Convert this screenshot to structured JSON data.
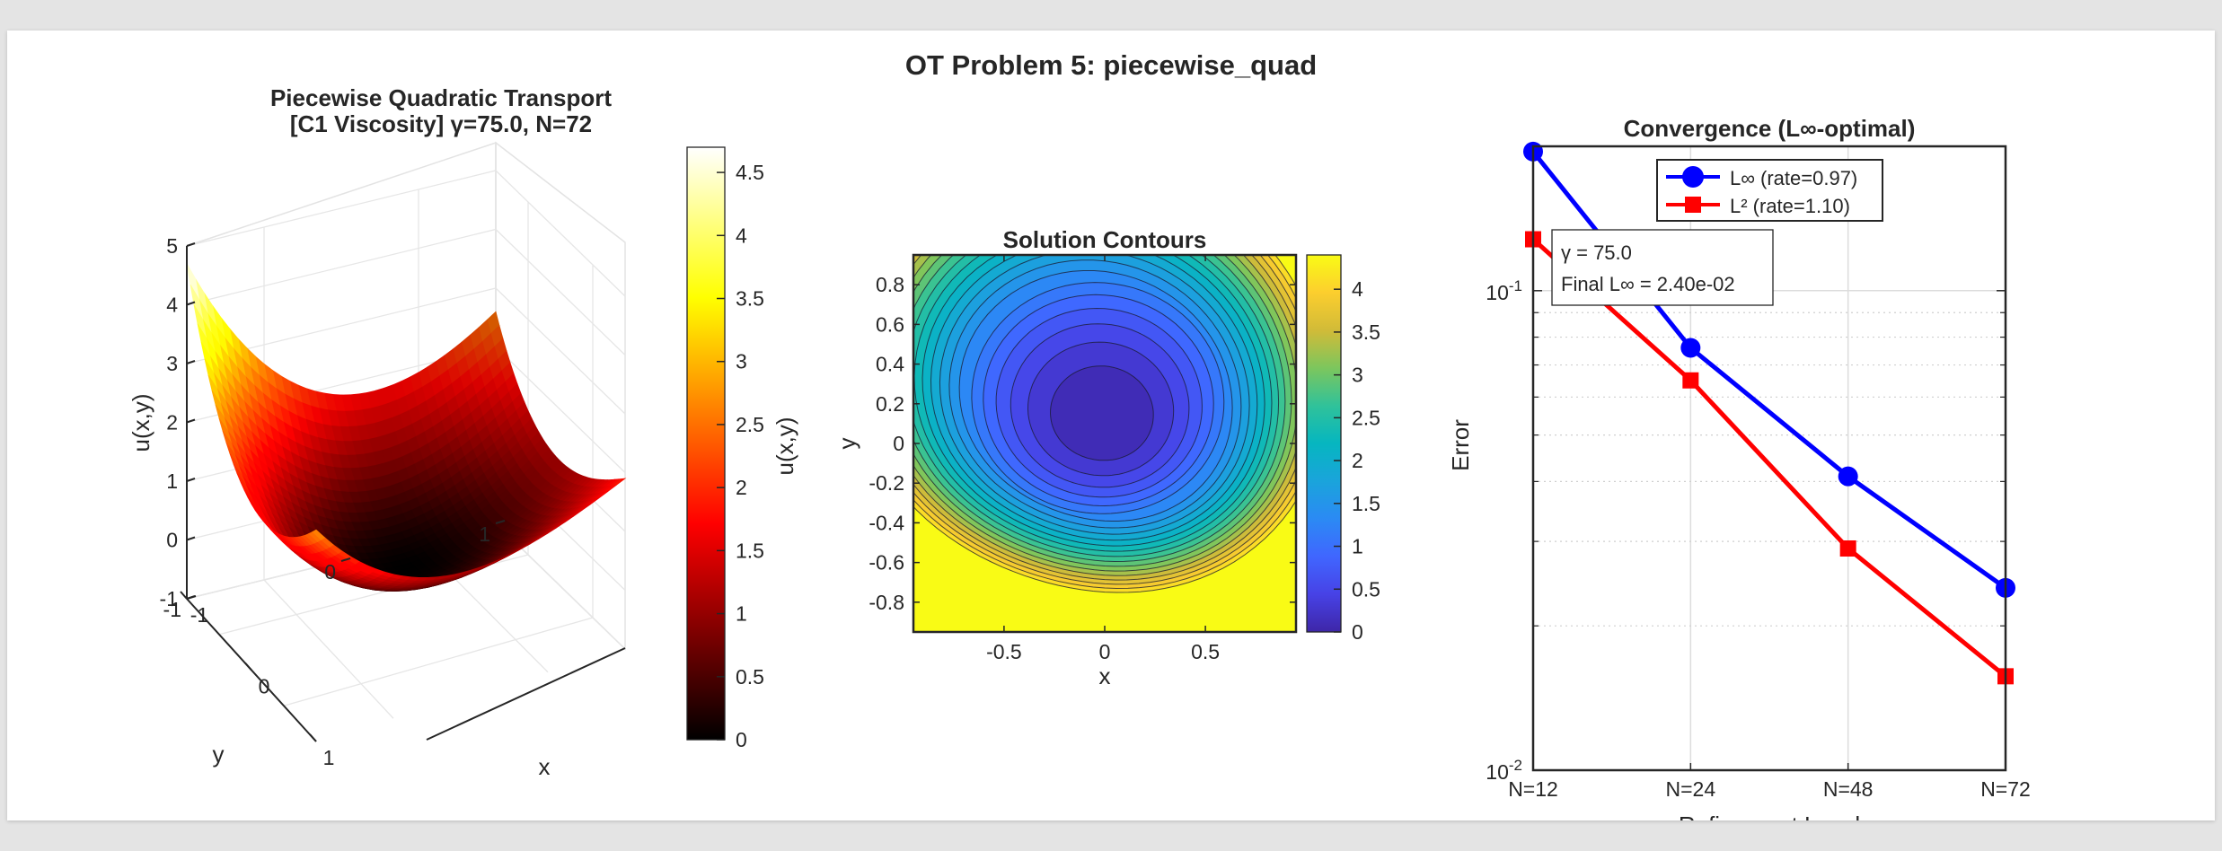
{
  "figure": {
    "suptitle": "OT Problem 5: piecewise_quad"
  },
  "chart_data": [
    {
      "type": "surface",
      "title_line1": "Piecewise Quadratic Transport",
      "title_line2": "[C1 Viscosity] γ=75.0, N=72",
      "xlabel": "x",
      "ylabel": "y",
      "zlabel": "u(x,y)",
      "xlim": [
        -1,
        1
      ],
      "ylim": [
        -1,
        1
      ],
      "zlim": [
        -1,
        5
      ],
      "x_ticks": [
        "-1",
        "0",
        "1"
      ],
      "y_ticks": [
        "1",
        "0",
        "-1"
      ],
      "z_ticks": [
        "5",
        "4",
        "3",
        "2",
        "1",
        "0",
        "-1"
      ],
      "corner_values": {
        "x-1_y-1": 4.7,
        "x1_y-1": 2.6,
        "x-1_y1": 2.6,
        "x1_y1": 1.9,
        "center": 0.0
      },
      "colormap": "hot",
      "grid": true,
      "colorbar": {
        "label": "u(x,y)",
        "range": [
          0,
          4.7
        ],
        "ticks": [
          "4.5",
          "4",
          "3.5",
          "3",
          "2.5",
          "2",
          "1.5",
          "1",
          "0.5",
          "0"
        ]
      }
    },
    {
      "type": "contour",
      "title": "Solution Contours",
      "xlabel": "x",
      "ylabel": "y",
      "xlim": [
        -0.95,
        0.95
      ],
      "ylim": [
        -0.95,
        0.95
      ],
      "x_ticks": [
        "-0.5",
        "0",
        "0.5"
      ],
      "y_ticks": [
        "0.8",
        "0.6",
        "0.4",
        "0.2",
        "0",
        "-0.2",
        "-0.4",
        "-0.6",
        "-0.8"
      ],
      "levels": [
        0.2,
        0.4,
        0.6,
        0.8,
        1.0,
        1.2,
        1.4,
        1.6,
        1.8,
        2.0,
        2.2,
        2.4,
        2.6,
        2.8,
        3.0,
        3.2,
        3.4,
        3.6,
        3.8,
        4.0,
        4.2
      ],
      "colormap": "parula",
      "colorbar": {
        "range": [
          0,
          4.4
        ],
        "ticks": [
          "4",
          "3.5",
          "3",
          "2.5",
          "2",
          "1.5",
          "1",
          "0.5",
          "0"
        ]
      }
    },
    {
      "type": "line",
      "title": "Convergence  (L∞-optimal)",
      "xlabel": "Refinement Level",
      "ylabel": "Error",
      "yscale": "log",
      "ylim": [
        0.01,
        0.2
      ],
      "categories": [
        "N=12",
        "N=24",
        "N=48",
        "N=72"
      ],
      "y_ticks": [
        {
          "base": "10",
          "exp": "-1",
          "value": 0.1
        },
        {
          "base": "10",
          "exp": "-2",
          "value": 0.01
        }
      ],
      "grid": true,
      "legend_position": "top",
      "series": [
        {
          "name": "L∞  (rate=0.97)",
          "color": "#0000ff",
          "marker": "circle",
          "values": [
            0.195,
            0.076,
            0.041,
            0.024
          ]
        },
        {
          "name": "L² (rate=1.10)",
          "color": "#ff0000",
          "marker": "square",
          "values": [
            0.128,
            0.065,
            0.029,
            0.0157
          ]
        }
      ],
      "annotation": {
        "line1": "γ  =  75.0",
        "line2": "Final  L∞  =  2.40e-02"
      }
    }
  ]
}
